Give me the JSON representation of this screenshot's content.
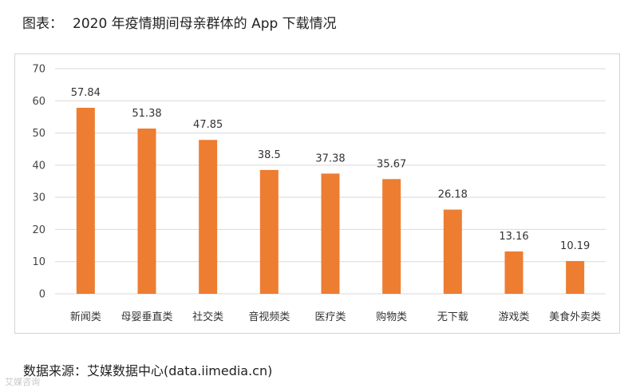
{
  "header": {
    "prefix": "图表：",
    "title": "2020 年疫情期间母亲群体的 App 下载情况"
  },
  "footer": {
    "source": "数据来源：艾媒数据中心(data.iimedia.cn)",
    "watermark": "艾媒咨询"
  },
  "colors": {
    "bar": "#ed7d31",
    "grid": "#d9d9d9"
  },
  "chart_data": {
    "type": "bar",
    "title": "2020 年疫情期间母亲群体的 App 下载情况",
    "xlabel": "",
    "ylabel": "",
    "categories": [
      "新闻类",
      "母婴垂直类",
      "社交类",
      "音视频类",
      "医疗类",
      "购物类",
      "无下载",
      "游戏类",
      "美食外卖类"
    ],
    "values": [
      57.84,
      51.38,
      47.85,
      38.5,
      37.38,
      35.67,
      26.18,
      13.16,
      10.19
    ],
    "value_labels": [
      "57.84",
      "51.38",
      "47.85",
      "38.5",
      "37.38",
      "35.67",
      "26.18",
      "13.16",
      "10.19"
    ],
    "ylim": [
      0,
      70
    ],
    "yticks": [
      0,
      10,
      20,
      30,
      40,
      50,
      60,
      70
    ],
    "grid": true,
    "legend": "none"
  }
}
